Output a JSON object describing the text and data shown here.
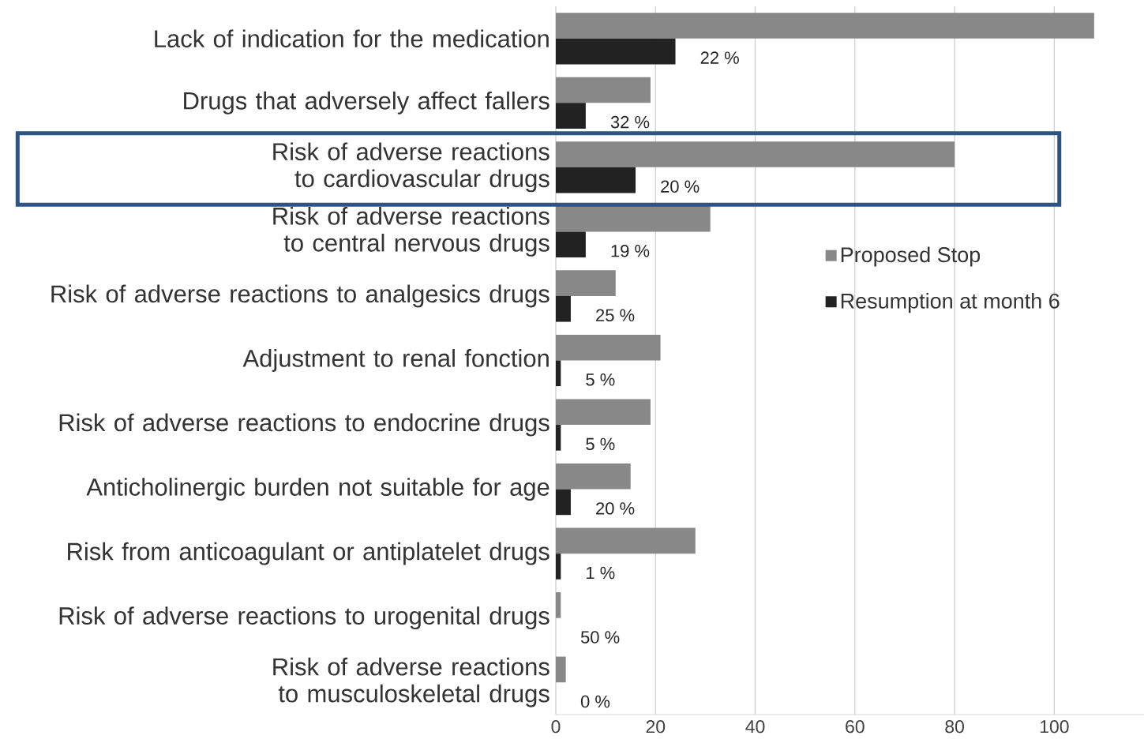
{
  "chart_data": {
    "type": "bar",
    "orientation": "horizontal",
    "categories": [
      "Lack of indication for the medication",
      "Drugs that adversely affect fallers",
      "Risk of adverse reactions to cardiovascular drugs",
      "Risk of adverse reactions to central nervous drugs",
      "Risk of adverse reactions to analgesics drugs",
      "Adjustment to renal fonction",
      "Risk of adverse reactions to endocrine drugs",
      "Anticholinergic burden not suitable for age",
      "Risk from anticoagulant or antiplatelet drugs",
      "Risk of adverse reactions to urogenital drugs",
      "Risk of adverse reactions to musculoskeletal drugs"
    ],
    "series": [
      {
        "name": "Proposed Stop",
        "color": "#888888",
        "values": [
          108,
          19,
          80,
          31,
          12,
          21,
          19,
          15,
          28,
          1,
          2
        ]
      },
      {
        "name": "Resumption at month 6",
        "color": "#222222",
        "values": [
          24,
          6,
          16,
          6,
          3,
          1,
          1,
          3,
          1,
          0,
          0
        ]
      }
    ],
    "annotations": [
      {
        "text": "22 %",
        "x": 24,
        "y": "Lack of indication for the medication"
      },
      {
        "text": "32 %",
        "x": 6,
        "y": "Drugs that adversely affect fallers"
      },
      {
        "text": "20 %",
        "x": 16,
        "y": "Risk of adverse reactions to cardiovascular drugs"
      },
      {
        "text": "19 %",
        "x": 6,
        "y": "Risk of adverse reactions to central nervous drugs"
      },
      {
        "text": "25 %",
        "x": 3,
        "y": "Risk of adverse reactions to analgesics drugs"
      },
      {
        "text": "5 %",
        "x": 1,
        "y": "Adjustment to renal fonction"
      },
      {
        "text": "5 %",
        "x": 1,
        "y": "Risk of adverse reactions to endocrine drugs"
      },
      {
        "text": "20 %",
        "x": 3,
        "y": "Anticholinergic burden not suitable for age"
      },
      {
        "text": "1 %",
        "x": 1,
        "y": "Risk from anticoagulant or antiplatelet drugs"
      },
      {
        "text": "50 %",
        "x": 0,
        "y": "Risk of adverse reactions to urogenital drugs"
      },
      {
        "text": "0 %",
        "x": 0,
        "y": "Risk of adverse reactions to musculoskeletal drugs"
      }
    ],
    "xlim": [
      0,
      118
    ],
    "xticks": [
      0,
      20,
      40,
      60,
      80,
      100
    ],
    "grid": "x",
    "legend": "right"
  }
}
